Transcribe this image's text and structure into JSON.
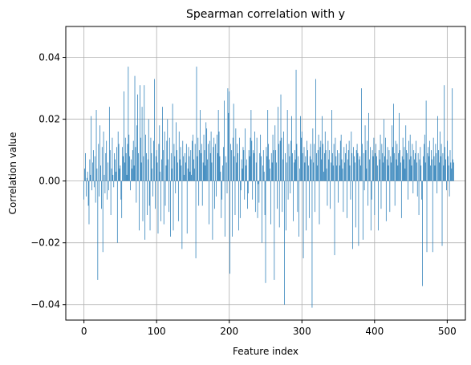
{
  "chart_data": {
    "type": "bar",
    "title": "Spearman correlation with y",
    "xlabel": "Feature index",
    "ylabel": "Correlation value",
    "xlim": [
      -25,
      525
    ],
    "ylim": [
      -0.045,
      0.05
    ],
    "x_ticks": [
      0,
      100,
      200,
      300,
      400,
      500
    ],
    "x_tick_labels": [
      "0",
      "100",
      "200",
      "300",
      "400",
      "500"
    ],
    "y_ticks": [
      -0.04,
      -0.02,
      0.0,
      0.02,
      0.04
    ],
    "y_tick_labels": [
      "−0.04",
      "−0.02",
      "0.00",
      "0.02",
      "0.04"
    ],
    "grid": true,
    "bar_color": "#1f77b4",
    "x_start": 0,
    "values": [
      -0.006,
      0.004,
      0.009,
      -0.005,
      0.001,
      0.003,
      -0.008,
      -0.014,
      0.007,
      0.002,
      0.021,
      -0.003,
      0.006,
      0.01,
      -0.002,
      0.008,
      -0.007,
      0.023,
      0.004,
      -0.032,
      0.012,
      -0.005,
      0.018,
      0.005,
      -0.009,
      0.011,
      -0.023,
      0.016,
      0.002,
      -0.004,
      0.009,
      0.013,
      -0.006,
      0.006,
      -0.003,
      0.024,
      0.01,
      -0.011,
      0.004,
      0.014,
      0.002,
      -0.002,
      0.009,
      0.007,
      0.003,
      0.011,
      -0.02,
      0.016,
      0.012,
      0.004,
      0.005,
      -0.006,
      -0.012,
      0.011,
      0.008,
      0.029,
      0.006,
      0.014,
      0.009,
      0.002,
      0.012,
      0.037,
      0.015,
      0.008,
      -0.003,
      0.007,
      0.004,
      0.01,
      0.013,
      0.005,
      0.034,
      0.011,
      -0.007,
      0.018,
      0.028,
      0.009,
      -0.016,
      0.031,
      0.014,
      0.006,
      0.024,
      -0.013,
      0.008,
      0.031,
      -0.019,
      0.015,
      0.009,
      -0.011,
      0.007,
      0.02,
      -0.008,
      -0.016,
      0.014,
      0.009,
      0.004,
      -0.005,
      0.013,
      0.033,
      -0.009,
      0.008,
      0.01,
      0.006,
      -0.017,
      0.012,
      0.018,
      0.003,
      -0.013,
      0.007,
      0.024,
      0.01,
      -0.014,
      0.016,
      -0.008,
      0.005,
      0.013,
      0.02,
      0.007,
      -0.01,
      0.014,
      -0.018,
      0.009,
      0.004,
      0.025,
      -0.016,
      0.012,
      0.008,
      -0.004,
      0.019,
      0.01,
      0.006,
      -0.013,
      0.016,
      0.007,
      0.011,
      0.005,
      -0.022,
      0.013,
      0.008,
      0.002,
      0.009,
      0.006,
      0.012,
      -0.017,
      0.004,
      0.011,
      0.008,
      0.003,
      0.01,
      0.002,
      0.013,
      0.015,
      0.007,
      0.004,
      0.012,
      -0.025,
      0.037,
      0.008,
      0.014,
      -0.008,
      0.01,
      0.023,
      0.009,
      0.012,
      -0.008,
      0.006,
      0.015,
      0.01,
      0.005,
      0.019,
      0.017,
      0.007,
      0.012,
      -0.014,
      0.013,
      0.009,
      0.016,
      0.006,
      -0.019,
      0.011,
      0.014,
      -0.009,
      0.012,
      -0.005,
      0.015,
      0.009,
      0.023,
      0.016,
      0.008,
      0.003,
      -0.012,
      -0.006,
      0.005,
      0.011,
      0.026,
      -0.018,
      0.008,
      0.006,
      -0.004,
      0.03,
      0.022,
      0.029,
      -0.03,
      0.012,
      0.01,
      -0.018,
      0.014,
      0.025,
      0.008,
      -0.011,
      0.017,
      0.006,
      0.012,
      0.009,
      -0.016,
      0.014,
      -0.012,
      -0.003,
      0.007,
      0.004,
      0.011,
      0.01,
      -0.006,
      0.017,
      0.005,
      0.007,
      -0.009,
      -0.004,
      0.01,
      0.008,
      0.014,
      0.023,
      0.013,
      -0.006,
      0.01,
      0.009,
      0.016,
      -0.01,
      0.006,
      0.014,
      -0.012,
      -0.001,
      -0.007,
      0.009,
      0.015,
      0.008,
      -0.02,
      0.005,
      0.01,
      0.003,
      -0.011,
      -0.033,
      0.011,
      0.008,
      0.023,
      0.012,
      0.007,
      0.004,
      -0.014,
      0.009,
      0.006,
      0.015,
      0.01,
      -0.032,
      0.018,
      0.01,
      0.006,
      -0.009,
      0.024,
      0.012,
      -0.015,
      0.013,
      0.028,
      0.014,
      -0.01,
      0.007,
      0.016,
      -0.04,
      0.009,
      -0.016,
      0.006,
      0.023,
      -0.006,
      0.012,
      0.008,
      -0.004,
      0.013,
      0.021,
      0.009,
      -0.013,
      0.006,
      0.01,
      0.007,
      0.036,
      0.012,
      -0.01,
      0.008,
      -0.018,
      0.004,
      0.021,
      0.014,
      0.016,
      0.009,
      -0.025,
      0.011,
      0.006,
      0.008,
      -0.016,
      0.013,
      0.01,
      0.005,
      -0.012,
      0.008,
      0.012,
      0.007,
      -0.041,
      0.017,
      0.006,
      0.012,
      -0.01,
      0.033,
      0.009,
      0.005,
      0.01,
      0.015,
      -0.014,
      0.011,
      0.013,
      0.007,
      0.021,
      0.012,
      0.003,
      0.009,
      0.016,
      0.01,
      0.004,
      -0.008,
      0.013,
      0.007,
      0.01,
      -0.009,
      0.006,
      0.023,
      0.009,
      0.005,
      0.012,
      -0.024,
      0.014,
      0.008,
      0.005,
      0.01,
      -0.007,
      0.009,
      0.005,
      0.013,
      0.015,
      0.007,
      0.004,
      -0.01,
      0.011,
      0.006,
      0.009,
      0.012,
      -0.012,
      0.007,
      0.01,
      0.013,
      0.005,
      -0.006,
      0.016,
      0.009,
      -0.022,
      0.011,
      0.008,
      0.006,
      -0.015,
      0.01,
      0.012,
      0.009,
      -0.021,
      0.007,
      0.008,
      0.005,
      0.03,
      0.012,
      -0.019,
      0.009,
      -0.003,
      0.018,
      0.01,
      0.004,
      0.013,
      -0.008,
      0.022,
      0.007,
      0.011,
      -0.016,
      -0.006,
      0.01,
      0.008,
      0.014,
      -0.011,
      0.009,
      0.012,
      0.008,
      0.005,
      -0.016,
      0.01,
      0.007,
      0.015,
      -0.009,
      0.012,
      0.009,
      0.006,
      0.02,
      0.008,
      0.014,
      -0.013,
      0.007,
      0.011,
      0.005,
      0.01,
      -0.01,
      0.008,
      0.006,
      0.018,
      0.011,
      0.025,
      0.009,
      -0.008,
      0.013,
      0.007,
      0.012,
      0.005,
      0.009,
      0.022,
      0.01,
      0.006,
      -0.012,
      0.008,
      0.014,
      0.007,
      0.011,
      0.004,
      0.018,
      0.01,
      0.009,
      -0.006,
      0.013,
      0.007,
      0.015,
      0.008,
      0.005,
      0.012,
      -0.004,
      0.01,
      0.007,
      0.009,
      0.013,
      0.006,
      -0.005,
      0.009,
      -0.011,
      0.007,
      0.011,
      0.005,
      -0.006,
      -0.034,
      0.008,
      0.012,
      0.015,
      0.006,
      0.026,
      -0.023,
      0.009,
      0.011,
      0.008,
      0.013,
      0.005,
      0.01,
      0.007,
      -0.023,
      0.014,
      0.008,
      0.005,
      0.012,
      0.009,
      -0.004,
      0.021,
      0.01,
      0.006,
      0.016,
      0.008,
      0.012,
      -0.021,
      0.009,
      0.005,
      0.031,
      0.011,
      0.007,
      -0.003,
      0.013,
      0.008,
      0.005,
      -0.005,
      0.01,
      0.006,
      0.004,
      0.03,
      0.007,
      0.006
    ]
  }
}
